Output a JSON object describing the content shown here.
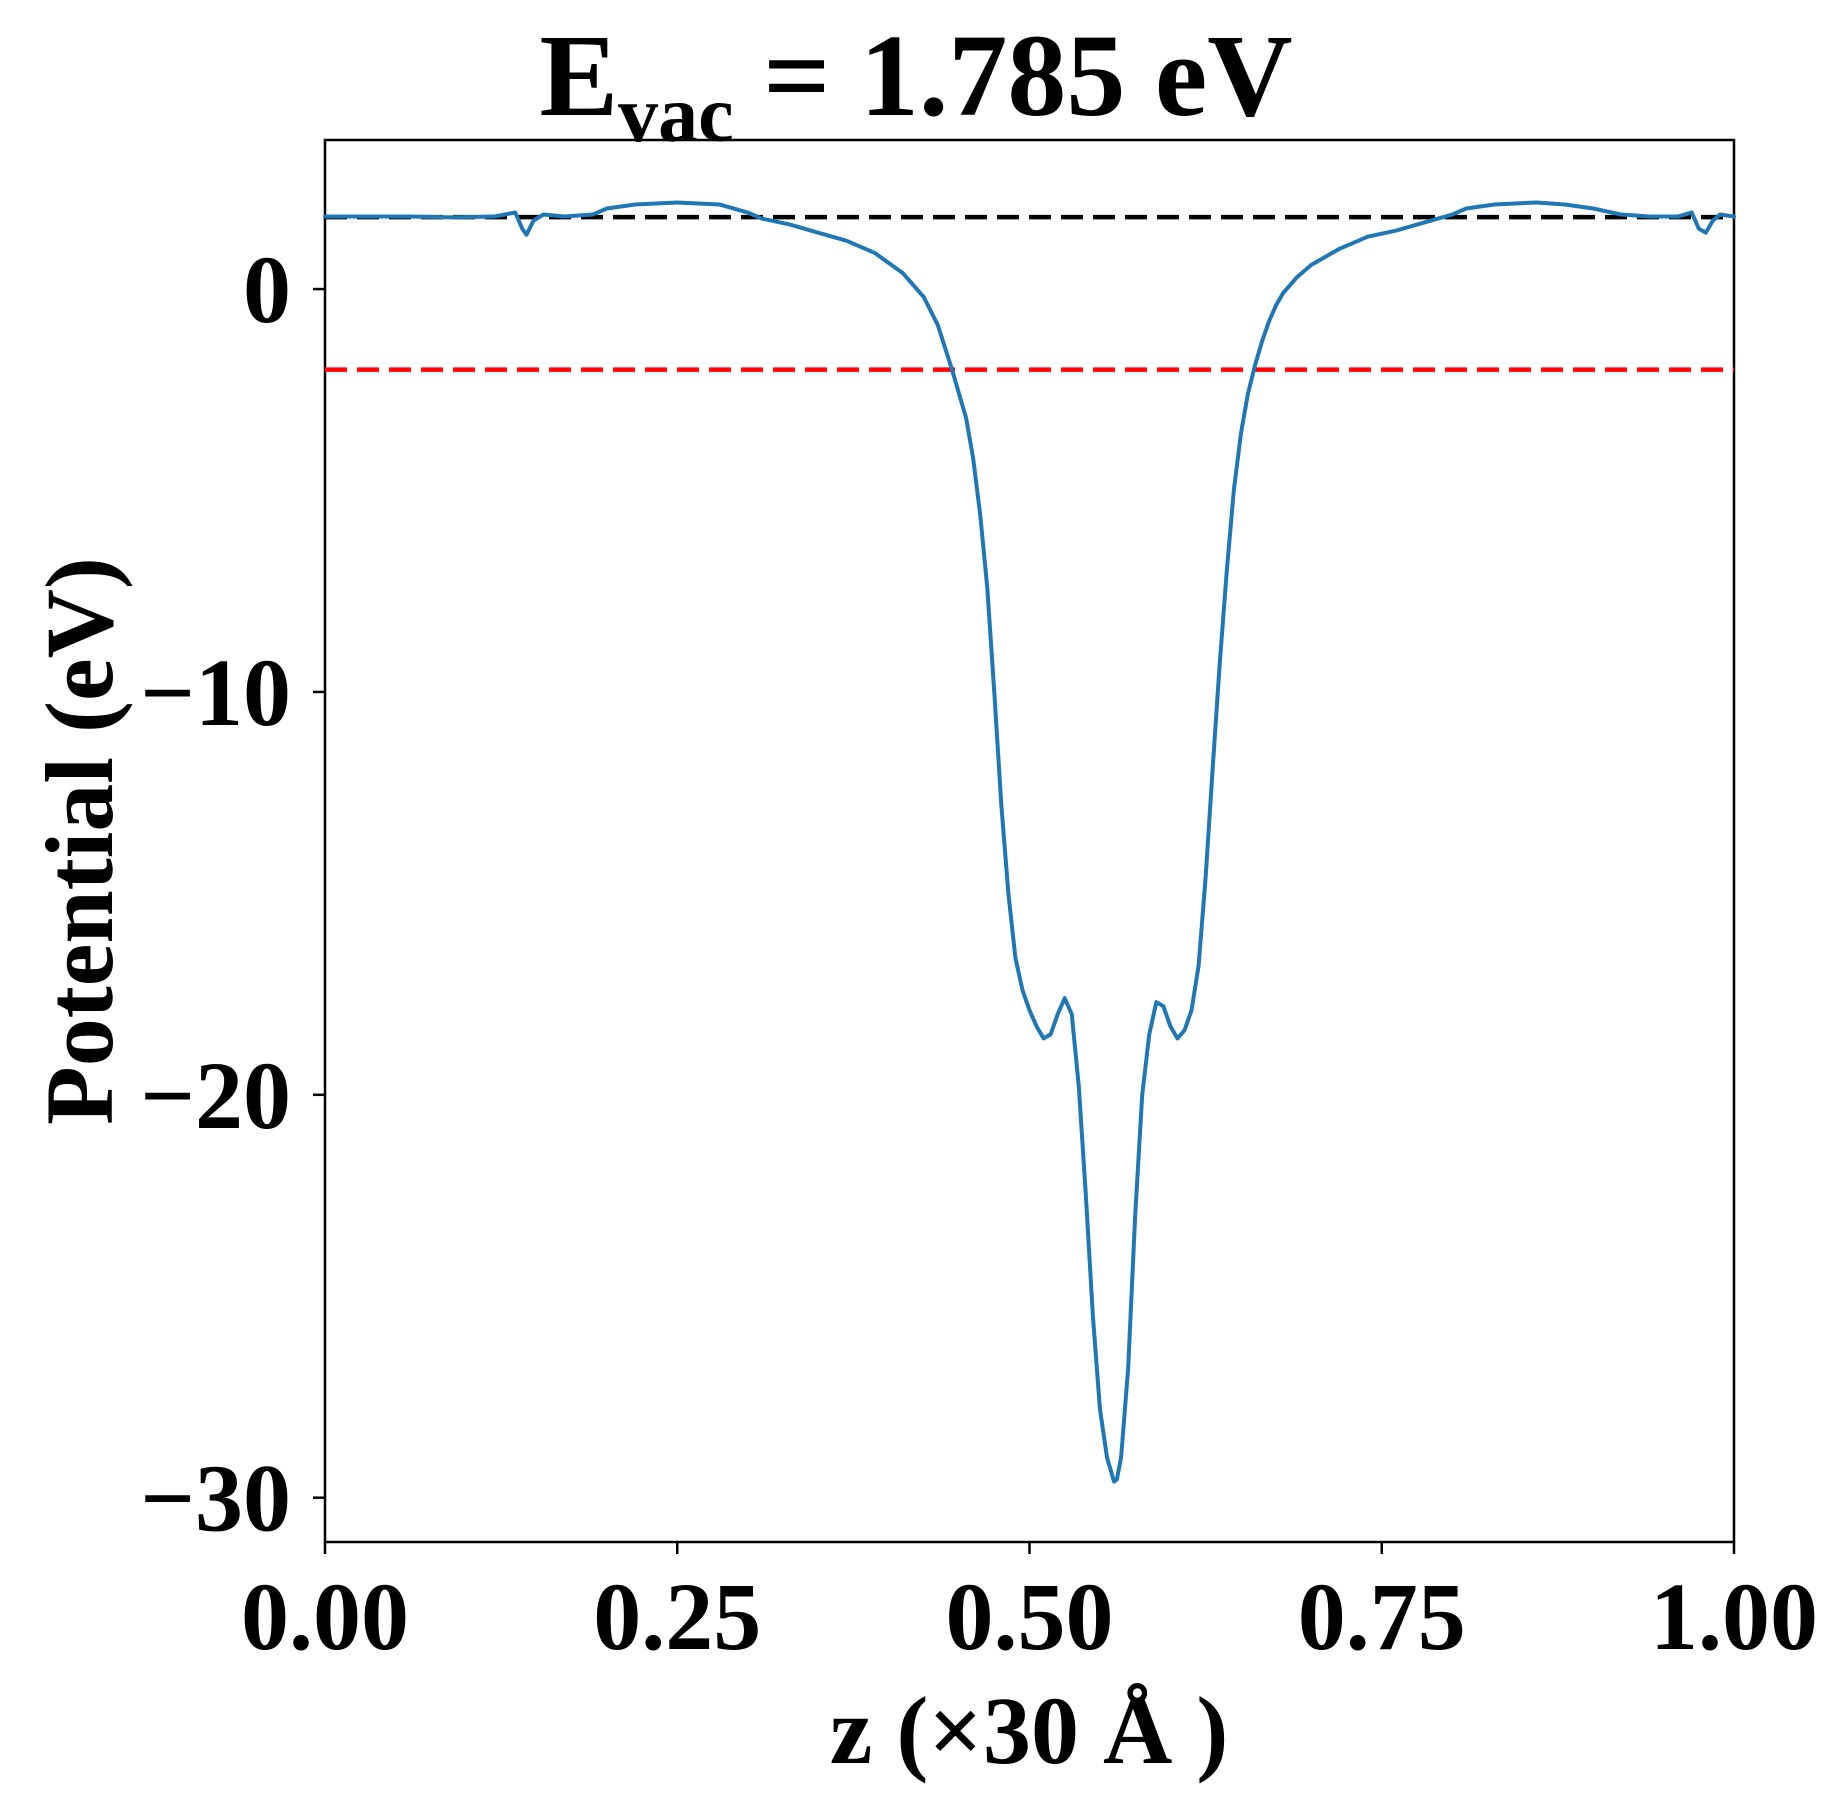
{
  "chart_data": {
    "type": "line",
    "title": {
      "main": "E",
      "sub": "vac",
      "rest": " = 1.785 eV"
    },
    "xlabel": "z (×30 Å )",
    "ylabel": "Potential (eV)",
    "xlim": [
      0.0,
      1.0
    ],
    "ylim": [
      -31.1,
      3.7
    ],
    "xticks": [
      0.0,
      0.25,
      0.5,
      0.75,
      1.0
    ],
    "xtick_labels": [
      "0.00",
      "0.25",
      "0.50",
      "0.75",
      "1.00"
    ],
    "yticks": [
      0,
      -10,
      -20,
      -30
    ],
    "ytick_labels": [
      "0",
      "−10",
      "−20",
      "−30"
    ],
    "grid": false,
    "reference_lines": [
      {
        "y": 1.785,
        "color": "#000000",
        "style": "dashed"
      },
      {
        "y": -2.0,
        "color": "#ff0000",
        "style": "dashed"
      }
    ],
    "series": [
      {
        "color": "#1f77b4",
        "x": [
          0.0,
          0.03,
          0.06,
          0.09,
          0.12,
          0.135,
          0.14,
          0.143,
          0.148,
          0.155,
          0.17,
          0.19,
          0.2,
          0.22,
          0.25,
          0.28,
          0.3,
          0.31,
          0.33,
          0.35,
          0.37,
          0.39,
          0.41,
          0.425,
          0.435,
          0.445,
          0.455,
          0.46,
          0.465,
          0.47,
          0.475,
          0.48,
          0.485,
          0.49,
          0.495,
          0.5,
          0.505,
          0.51,
          0.515,
          0.52,
          0.525,
          0.53,
          0.535,
          0.54,
          0.545,
          0.55,
          0.555,
          0.56,
          0.562,
          0.565,
          0.57,
          0.575,
          0.58,
          0.585,
          0.59,
          0.595,
          0.6,
          0.605,
          0.61,
          0.615,
          0.62,
          0.625,
          0.63,
          0.635,
          0.64,
          0.645,
          0.65,
          0.655,
          0.66,
          0.665,
          0.67,
          0.675,
          0.68,
          0.69,
          0.7,
          0.72,
          0.74,
          0.76,
          0.78,
          0.8,
          0.81,
          0.83,
          0.86,
          0.88,
          0.9,
          0.92,
          0.94,
          0.96,
          0.97,
          0.975,
          0.98,
          0.985,
          0.99,
          1.0
        ],
        "y": [
          1.8,
          1.8,
          1.8,
          1.78,
          1.8,
          1.9,
          1.5,
          1.35,
          1.7,
          1.85,
          1.8,
          1.85,
          2.0,
          2.1,
          2.15,
          2.1,
          1.9,
          1.75,
          1.6,
          1.4,
          1.2,
          0.9,
          0.4,
          -0.2,
          -0.9,
          -2.0,
          -3.2,
          -4.2,
          -5.6,
          -7.4,
          -10.0,
          -12.8,
          -15.0,
          -16.6,
          -17.4,
          -17.9,
          -18.3,
          -18.6,
          -18.5,
          -18.0,
          -17.6,
          -18.0,
          -19.8,
          -22.5,
          -25.5,
          -27.8,
          -29.0,
          -29.6,
          -29.55,
          -29.0,
          -26.8,
          -23.0,
          -20.0,
          -18.5,
          -17.7,
          -17.8,
          -18.3,
          -18.6,
          -18.4,
          -17.9,
          -16.8,
          -14.6,
          -11.9,
          -9.3,
          -7.0,
          -5.0,
          -3.6,
          -2.6,
          -1.9,
          -1.3,
          -0.8,
          -0.4,
          -0.1,
          0.3,
          0.6,
          1.0,
          1.3,
          1.45,
          1.65,
          1.85,
          2.0,
          2.1,
          2.15,
          2.1,
          2.0,
          1.85,
          1.8,
          1.8,
          1.9,
          1.5,
          1.4,
          1.7,
          1.85,
          1.8
        ]
      }
    ]
  }
}
